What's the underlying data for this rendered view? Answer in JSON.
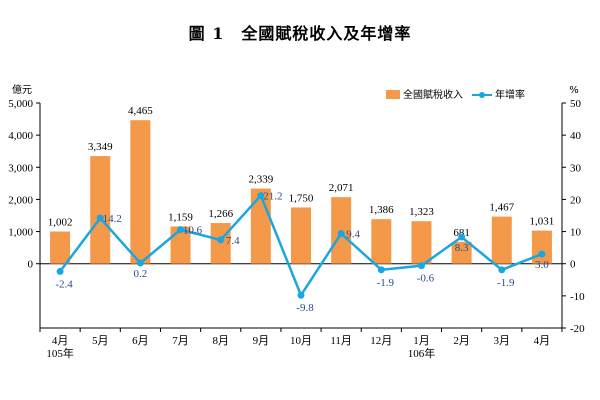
{
  "title": "圖 1　全國賦稅收入及年增率",
  "chart_data": {
    "type": "bar+line",
    "title": "圖 1　全國賦稅收入及年增率",
    "categories": [
      "4月",
      "5月",
      "6月",
      "7月",
      "8月",
      "9月",
      "10月",
      "11月",
      "12月",
      "1月",
      "2月",
      "3月",
      "4月"
    ],
    "category_sublabels": [
      "105年",
      "",
      "",
      "",
      "",
      "",
      "",
      "",
      "",
      "106年",
      "",
      "",
      ""
    ],
    "left_axis": {
      "unit": "億元",
      "ylim": [
        -2000,
        5000
      ],
      "ticks": [
        0,
        1000,
        2000,
        3000,
        4000,
        5000
      ],
      "tick_labels": [
        "0",
        "1,000",
        "2,000",
        "3,000",
        "4,000",
        "5,000"
      ]
    },
    "right_axis": {
      "unit": "%",
      "ylim": [
        -20,
        50
      ],
      "ticks": [
        -20,
        -10,
        0,
        10,
        20,
        30,
        40,
        50
      ],
      "tick_labels": [
        "-20",
        "-10",
        "0",
        "10",
        "20",
        "30",
        "40",
        "50"
      ]
    },
    "series": [
      {
        "name": "全國賦稅收入",
        "kind": "bar",
        "axis": "left",
        "color": "#f4994a",
        "values": [
          1002,
          3349,
          4465,
          1159,
          1266,
          2339,
          1750,
          2071,
          1386,
          1323,
          681,
          1467,
          1031
        ],
        "labels": [
          "1,002",
          "3,349",
          "4,465",
          "1,159",
          "1,266",
          "2,339",
          "1,750",
          "2,071",
          "1,386",
          "1,323",
          "681",
          "1,467",
          "1,031"
        ]
      },
      {
        "name": "年增率",
        "kind": "line",
        "axis": "right",
        "color": "#1aa6e0",
        "values": [
          -2.4,
          14.2,
          0.2,
          10.6,
          7.4,
          21.2,
          -9.8,
          9.4,
          -1.9,
          -0.6,
          8.3,
          -1.9,
          3.0
        ],
        "labels": [
          "-2.4",
          "14.2",
          "0.2",
          "10.6",
          "7.4",
          "21.2",
          "-9.8",
          "9.4",
          "-1.9",
          "-0.6",
          "8.3",
          "-1.9",
          "3.0"
        ]
      }
    ],
    "legend_position": "top-right",
    "grid": false
  }
}
